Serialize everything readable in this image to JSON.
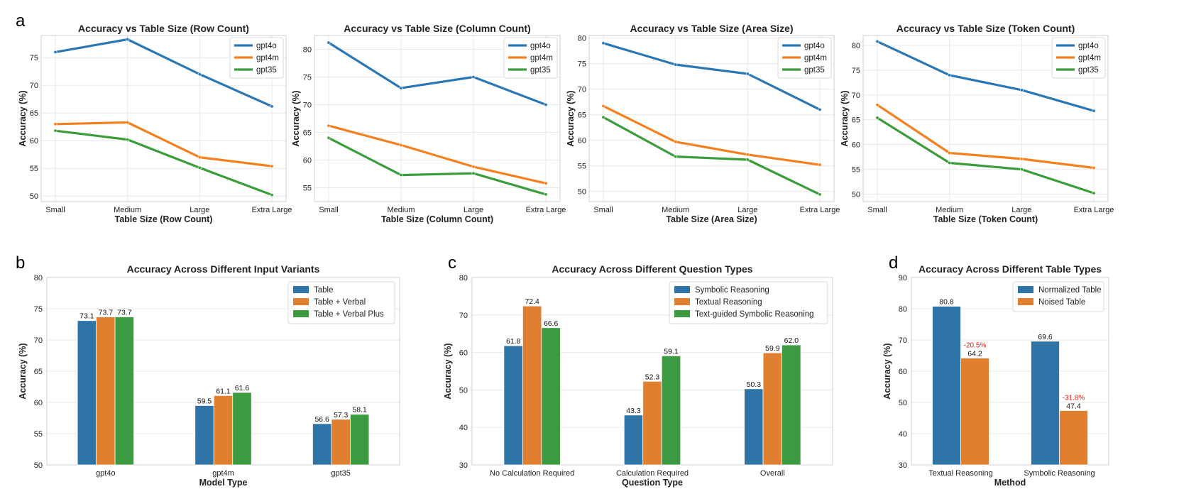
{
  "panel_labels": [
    "a",
    "b",
    "c",
    "d"
  ],
  "colors": {
    "gpt4o": "#2b77b4",
    "gpt4m": "#f47f1f",
    "gpt35": "#3a9c3a",
    "bar_blue": "#2f74a6",
    "bar_orange": "#e07f2f",
    "bar_green": "#3c9a40",
    "drop": "#e0201b"
  },
  "chart_data": [
    {
      "type": "line",
      "title": "Accuracy vs Table Size (Row Count)",
      "xlabel": "Table Size (Row Count)",
      "ylabel": "Accuracy (%)",
      "categories": [
        "Small",
        "Medium",
        "Large",
        "Extra Large"
      ],
      "ylim": [
        49,
        79
      ],
      "yticks": [
        50,
        55,
        60,
        65,
        70,
        75
      ],
      "legend": "top-right",
      "series": [
        {
          "name": "gpt4o",
          "values": [
            76.0,
            78.3,
            72.0,
            66.2
          ]
        },
        {
          "name": "gpt4m",
          "values": [
            63.0,
            63.3,
            57.0,
            55.4
          ]
        },
        {
          "name": "gpt35",
          "values": [
            61.8,
            60.2,
            55.1,
            50.2
          ]
        }
      ]
    },
    {
      "type": "line",
      "title": "Accuracy vs Table Size (Column Count)",
      "xlabel": "Table Size (Column Count)",
      "ylabel": "Accuracy (%)",
      "categories": [
        "Small",
        "Medium",
        "Large",
        "Extra Large"
      ],
      "ylim": [
        52.5,
        82.5
      ],
      "yticks": [
        55,
        60,
        65,
        70,
        75,
        80
      ],
      "legend": "top-right",
      "series": [
        {
          "name": "gpt4o",
          "values": [
            81.2,
            73.0,
            75.0,
            70.0
          ]
        },
        {
          "name": "gpt4m",
          "values": [
            66.2,
            62.7,
            58.8,
            55.8
          ]
        },
        {
          "name": "gpt35",
          "values": [
            64.0,
            57.3,
            57.6,
            53.8
          ]
        }
      ]
    },
    {
      "type": "line",
      "title": "Accuracy vs Table Size (Area Size)",
      "xlabel": "Table Size (Area Size)",
      "ylabel": "Accuracy (%)",
      "categories": [
        "Small",
        "Medium",
        "Large",
        "Extra Large"
      ],
      "ylim": [
        48,
        80.5
      ],
      "yticks": [
        50,
        55,
        60,
        65,
        70,
        75,
        80
      ],
      "legend": "top-right",
      "series": [
        {
          "name": "gpt4o",
          "values": [
            79.0,
            74.8,
            73.0,
            66.0
          ]
        },
        {
          "name": "gpt4m",
          "values": [
            66.7,
            59.7,
            57.2,
            55.2
          ]
        },
        {
          "name": "gpt35",
          "values": [
            64.5,
            56.8,
            56.2,
            49.4
          ]
        }
      ]
    },
    {
      "type": "line",
      "title": "Accuracy vs Table Size (Token Count)",
      "xlabel": "Table Size (Token Count)",
      "ylabel": "Accuracy (%)",
      "categories": [
        "Small",
        "Medium",
        "Large",
        "Extra Large"
      ],
      "ylim": [
        48.5,
        82
      ],
      "yticks": [
        50,
        55,
        60,
        65,
        70,
        75,
        80
      ],
      "legend": "top-right",
      "series": [
        {
          "name": "gpt4o",
          "values": [
            80.8,
            74.0,
            71.0,
            66.8
          ]
        },
        {
          "name": "gpt4m",
          "values": [
            68.0,
            58.3,
            57.1,
            55.3
          ]
        },
        {
          "name": "gpt35",
          "values": [
            65.4,
            56.3,
            55.0,
            50.2
          ]
        }
      ]
    },
    {
      "type": "bar",
      "title": "Accuracy Across Different Input Variants",
      "xlabel": "Model Type",
      "ylabel": "Accuracy (%)",
      "categories": [
        "gpt4o",
        "gpt4m",
        "gpt35"
      ],
      "ylim": [
        50,
        80
      ],
      "yticks": [
        50,
        55,
        60,
        65,
        70,
        75,
        80
      ],
      "legend": "top-right",
      "series": [
        {
          "name": "Table",
          "values": [
            73.1,
            59.5,
            56.6
          ]
        },
        {
          "name": "Table + Verbal",
          "values": [
            73.7,
            61.1,
            57.3
          ]
        },
        {
          "name": "Table + Verbal Plus",
          "values": [
            73.7,
            61.6,
            58.1
          ]
        }
      ]
    },
    {
      "type": "bar",
      "title": "Accuracy Across Different Question Types",
      "xlabel": "Question Type",
      "ylabel": "Accuracy (%)",
      "categories": [
        "No Calculation Required",
        "Calculation Required",
        "Overall"
      ],
      "ylim": [
        30,
        80
      ],
      "yticks": [
        30,
        40,
        50,
        60,
        70,
        80
      ],
      "legend": "top-right",
      "series": [
        {
          "name": "Symbolic Reasoning",
          "values": [
            61.8,
            43.3,
            50.3
          ]
        },
        {
          "name": "Textual Reasoning",
          "values": [
            72.4,
            52.3,
            59.9
          ]
        },
        {
          "name": "Text-guided Symbolic Reasoning",
          "values": [
            66.6,
            59.1,
            62.0
          ]
        }
      ]
    },
    {
      "type": "bar",
      "title": "Accuracy Across Different Table Types",
      "xlabel": "Method",
      "ylabel": "Accuracy (%)",
      "categories": [
        "Textual Reasoning",
        "Symbolic Reasoning"
      ],
      "ylim": [
        30,
        90
      ],
      "yticks": [
        30,
        40,
        50,
        60,
        70,
        80,
        90
      ],
      "legend": "top-right",
      "series": [
        {
          "name": "Normalized Table",
          "values": [
            80.8,
            69.6
          ]
        },
        {
          "name": "Noised Table",
          "values": [
            64.2,
            47.4
          ]
        }
      ],
      "annotations": [
        "-20.5%",
        "-31.8%"
      ]
    }
  ]
}
